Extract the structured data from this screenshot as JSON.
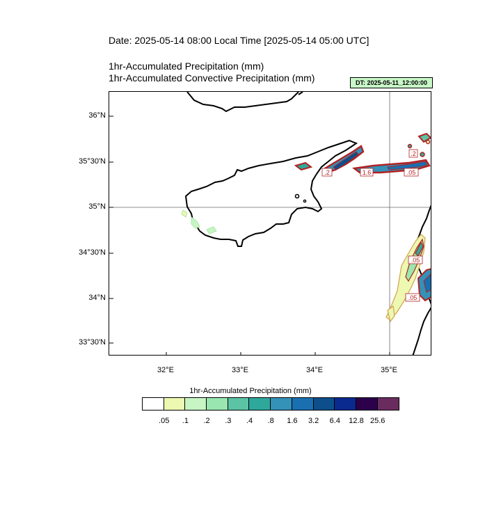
{
  "header": {
    "date_line": "Date: 2025-05-14  08:00 Local Time [2025-05-14  05:00 UTC]",
    "field_1": "1hr-Accumulated Precipitation   (mm)",
    "field_2": "1hr-Accumulated Convective Precipitation   (mm)",
    "init_badge": "DT: 2025-05-11_12:00:00"
  },
  "map": {
    "lat_labels": [
      "36°N",
      "35°30'N",
      "35°N",
      "34°30'N",
      "34°N",
      "33°30'N"
    ],
    "lon_labels": [
      "32°E",
      "33°E",
      "34°E",
      "35°E"
    ],
    "contour_labels": [
      ".2",
      "1.6",
      ".05",
      ".2",
      ".05",
      ".05"
    ],
    "coast_color": "#000000",
    "contour_color": "#b22222"
  },
  "legend": {
    "title": "1hr-Accumulated Precipitation  (mm)",
    "levels": [
      ".05",
      ".1",
      ".2",
      ".3",
      ".4",
      ".8",
      "1.6",
      "3.2",
      "6.4",
      "12.8",
      "25.6"
    ],
    "colors": [
      "#ffffff",
      "#edf8b1",
      "#c7f5c4",
      "#99e6b0",
      "#5cc3a4",
      "#2fa89c",
      "#3491b8",
      "#1a6fb0",
      "#0c4f8c",
      "#0b2a8f",
      "#2d004b",
      "#6a2c5f"
    ]
  }
}
